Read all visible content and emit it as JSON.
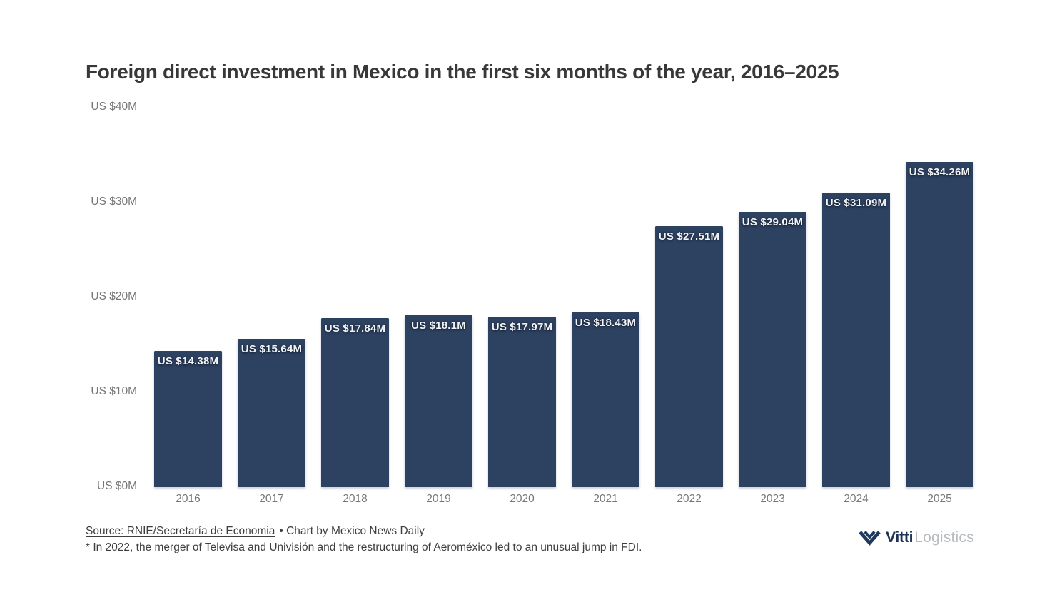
{
  "title": "Foreign direct investment in Mexico in the first six months of the year, 2016–2025",
  "chart_data": {
    "type": "bar",
    "title": "Foreign direct investment in Mexico in the first six months of the year, 2016–2025",
    "categories": [
      "2016",
      "2017",
      "2018",
      "2019",
      "2020",
      "2021",
      "2022",
      "2023",
      "2024",
      "2025"
    ],
    "values": [
      14.38,
      15.64,
      17.84,
      18.1,
      17.97,
      18.43,
      27.51,
      29.04,
      31.09,
      34.26
    ],
    "bar_labels": [
      "US $14.38M",
      "US $15.64M",
      "US $17.84M",
      "US $18.1M",
      "US $17.97M",
      "US $18.43M",
      "US $27.51M",
      "US $29.04M",
      "US $31.09M",
      "US $34.26M"
    ],
    "y_ticks": [
      {
        "label": "US $40M",
        "value": 40
      },
      {
        "label": "US $30M",
        "value": 30
      },
      {
        "label": "US $20M",
        "value": 20
      },
      {
        "label": "US $10M",
        "value": 10
      },
      {
        "label": "US $0M",
        "value": 0
      }
    ],
    "xlabel": "",
    "ylabel": "",
    "ylim": [
      0,
      40
    ],
    "grid": false,
    "legend": false,
    "bar_color": "#2d4160",
    "label_text_color": "#f2f4f7",
    "axis_text_color": "#767676"
  },
  "footer": {
    "source_link": "Source: RNIE/Secretaría de Economia",
    "source_rest": "• Chart by Mexico News Daily",
    "footnote": "* In 2022, the merger of Televisa and Univisión and the restructuring of Aeroméxico led to an unusual jump in FDI."
  },
  "logo": {
    "brand_bold": "Vitti",
    "brand_light": "Logistics",
    "icon": "double-chevron-down-icon",
    "navy": "#1e3a5f",
    "gray": "#b9bcbf"
  }
}
